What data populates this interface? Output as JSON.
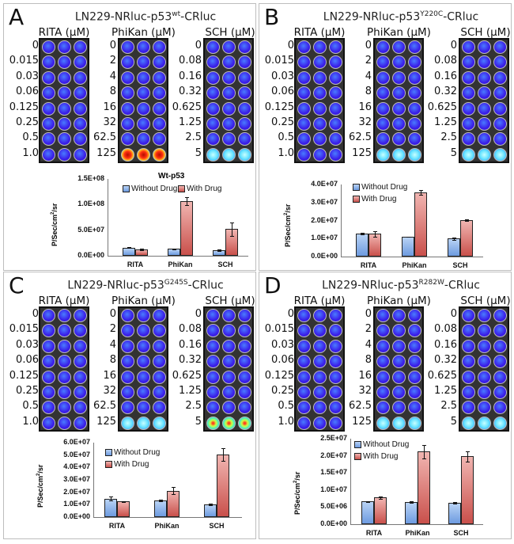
{
  "panels": [
    {
      "letter": "A",
      "title_pre": "LN229-NRluc-p53",
      "title_sup": "wt",
      "title_post": "-CRluc"
    },
    {
      "letter": "B",
      "title_pre": "LN229-NRluc-p53",
      "title_sup": "Y220C",
      "title_post": "-CRluc"
    },
    {
      "letter": "C",
      "title_pre": "LN229-NRluc-p53",
      "title_sup": "G245S",
      "title_post": "-CRluc"
    },
    {
      "letter": "D",
      "title_pre": "LN229-NRluc-p53",
      "title_sup": "R282W",
      "title_post": "-CRluc"
    }
  ],
  "plates": [
    {
      "header": "RITA (µM)",
      "concentrations": [
        "0",
        "0.015",
        "0.03",
        "0.06",
        "0.125",
        "0.25",
        "0.5",
        "1.0"
      ]
    },
    {
      "header": "PhiKan (µM)",
      "concentrations": [
        "0",
        "2",
        "4",
        "8",
        "16",
        "32",
        "62.5",
        "125"
      ]
    },
    {
      "header": "SCH (µM)",
      "concentrations": [
        "0",
        "0.08",
        "0.16",
        "0.32",
        "0.625",
        "1.25",
        "2.5",
        "5"
      ]
    }
  ],
  "top_row_signal": [
    {
      "RITA": "low",
      "PhiKan": "very-high",
      "SCH": "medium"
    },
    {
      "RITA": "low",
      "PhiKan": "medium",
      "SCH": "medium"
    },
    {
      "RITA": "low",
      "PhiKan": "medium",
      "SCH": "high"
    },
    {
      "RITA": "low",
      "PhiKan": "medium",
      "SCH": "medium"
    }
  ],
  "colors": {
    "without_drug": "#7fa8e6",
    "with_drug": "#d9726d",
    "well_low": "#3a1de8",
    "well_medium": "#7ff0ff",
    "well_high": "#7dff6a",
    "well_very_high": "#e02010"
  },
  "chart_data": [
    {
      "type": "bar",
      "title": "Wt-p53",
      "ylabel": "P/Sec/cm2/sr",
      "categories": [
        "RITA",
        "PhiKan",
        "SCH"
      ],
      "ylim": [
        0,
        150000000
      ],
      "yticks": [
        "0.0E+00",
        "5.0E+07",
        "1.0E+08",
        "1.5E+08"
      ],
      "legend": "top",
      "series": [
        {
          "name": "Without Drug",
          "values": [
            16000000,
            13500000,
            11000000
          ],
          "errors": [
            1000000,
            500000,
            1000000
          ]
        },
        {
          "name": "With Drug",
          "values": [
            12500000,
            107000000,
            52000000
          ],
          "errors": [
            1000000,
            8000000,
            13000000
          ]
        }
      ]
    },
    {
      "type": "bar",
      "title": "",
      "ylabel": "P/Sec/cm2/sr",
      "categories": [
        "RITA",
        "PhiKan",
        "SCH"
      ],
      "ylim": [
        0,
        40000000
      ],
      "yticks": [
        "0.0E+00",
        "1.0E+07",
        "2.0E+07",
        "3.0E+07",
        "4.0E+07"
      ],
      "legend": "top-left",
      "series": [
        {
          "name": "Without Drug",
          "values": [
            12800000,
            11000000,
            10000000
          ],
          "errors": [
            300000,
            200000,
            700000
          ]
        },
        {
          "name": "With Drug",
          "values": [
            12700000,
            35700000,
            20200000
          ],
          "errors": [
            1500000,
            1200000,
            500000
          ]
        }
      ]
    },
    {
      "type": "bar",
      "title": "",
      "ylabel": "P/Sec/cm2/sr",
      "categories": [
        "RITA",
        "PhiKan",
        "SCH"
      ],
      "ylim": [
        0,
        60000000
      ],
      "yticks": [
        "0.0E+00",
        "1.0E+07",
        "2.0E+07",
        "3.0E+07",
        "4.0E+07",
        "5.0E+07",
        "6.0E+07"
      ],
      "legend": "top-left",
      "series": [
        {
          "name": "Without Drug",
          "values": [
            15000000,
            13300000,
            10300000
          ],
          "errors": [
            1800000,
            500000,
            500000
          ]
        },
        {
          "name": "With Drug",
          "values": [
            12500000,
            21200000,
            50500000
          ],
          "errors": [
            500000,
            3000000,
            5000000
          ]
        }
      ]
    },
    {
      "type": "bar",
      "title": "",
      "ylabel": "P/Sec/cm2/sr",
      "categories": [
        "RITA",
        "PhiKan",
        "SCH"
      ],
      "ylim": [
        0,
        25000000
      ],
      "yticks": [
        "0.0E+00",
        "5.0E+06",
        "1.0E+07",
        "1.5E+07",
        "2.0E+07",
        "2.5E+07"
      ],
      "legend": "top-left",
      "series": [
        {
          "name": "Without Drug",
          "values": [
            6600000,
            6500000,
            6300000
          ],
          "errors": [
            50000,
            200000,
            200000
          ]
        },
        {
          "name": "With Drug",
          "values": [
            7800000,
            21200000,
            19800000
          ],
          "errors": [
            300000,
            1900000,
            1600000
          ]
        }
      ]
    }
  ]
}
